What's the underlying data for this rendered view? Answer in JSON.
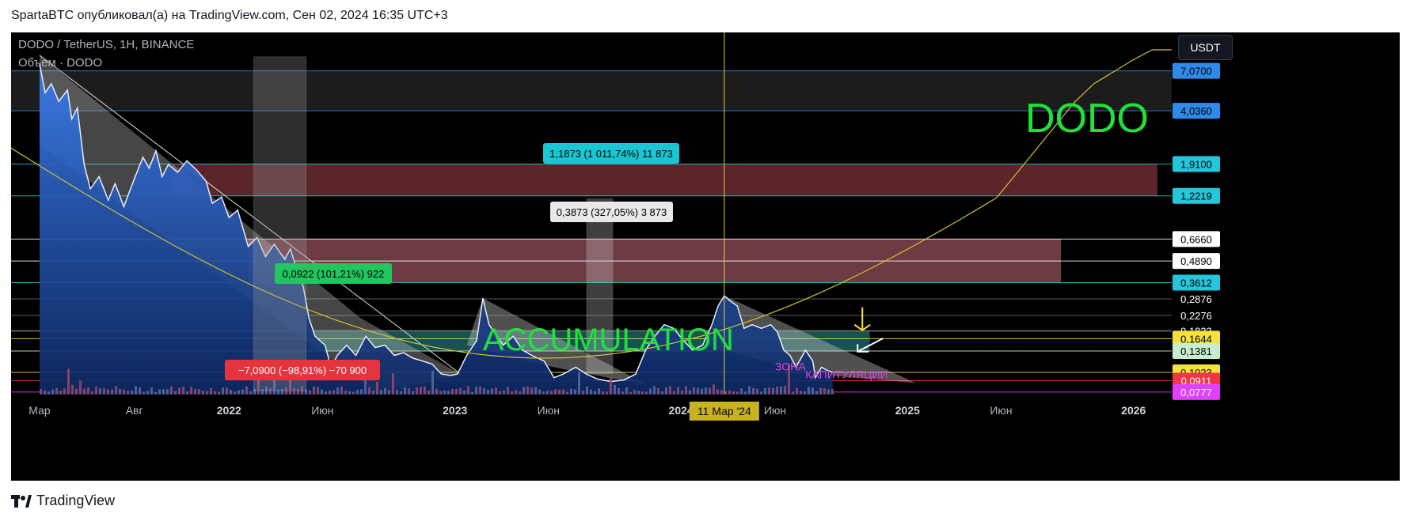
{
  "caption": "SpartaBTC опубликовал(а) на TradingView.com, Сен 02, 2024 16:35 UTC+3",
  "footer": {
    "logo_text": "TradingView"
  },
  "colors": {
    "background": "#000000",
    "area_fill": "#2a6bd6",
    "price_line": "#e8eefc",
    "accent_green": "#22e03a",
    "capitulation_pink": "#e040e0",
    "crosshair_yellow": "#e6cf3a"
  },
  "chart_data": {
    "type": "area",
    "title": "DODO / TetherUS, 1H, BINANCE",
    "subtitle": "Объем · DODO",
    "currency": "USDT",
    "y_scale": "log",
    "ylim": [
      0.075,
      9.5
    ],
    "x_start": "2021-03",
    "x_end": "2026-02",
    "x_ticks": [
      {
        "label": "Мар",
        "date": "2021-03"
      },
      {
        "label": "Авг",
        "date": "2021-08"
      },
      {
        "label": "2022",
        "date": "2022-01"
      },
      {
        "label": "Июн",
        "date": "2022-06"
      },
      {
        "label": "2023",
        "date": "2023-01"
      },
      {
        "label": "Июн",
        "date": "2023-06"
      },
      {
        "label": "2024",
        "date": "2024-01"
      },
      {
        "label": "Июн",
        "date": "2024-06"
      },
      {
        "label": "2025",
        "date": "2025-01"
      },
      {
        "label": "Июн",
        "date": "2025-06"
      },
      {
        "label": "2026",
        "date": "2026-01"
      }
    ],
    "crosshair": {
      "date": "2024-03-11",
      "label": "11 Мар '24"
    },
    "price_levels": [
      {
        "value": 7.07,
        "label": "7,0700",
        "bg": "#2f8ae8",
        "fg": "#000000"
      },
      {
        "value": 4.036,
        "label": "4,0360",
        "bg": "#2f8ae8",
        "fg": "#000000"
      },
      {
        "value": 1.91,
        "label": "1,9100",
        "bg": "#26c6da",
        "fg": "#000000"
      },
      {
        "value": 1.2219,
        "label": "1,2219",
        "bg": "#26c6da",
        "fg": "#000000"
      },
      {
        "value": 0.666,
        "label": "0,6660",
        "bg": "#ffffff",
        "fg": "#000000"
      },
      {
        "value": 0.489,
        "label": "0,4890",
        "bg": "#ffffff",
        "fg": "#000000"
      },
      {
        "value": 0.3612,
        "label": "0,3612",
        "bg": "#26c6da",
        "fg": "#000000"
      },
      {
        "value": 0.2876,
        "label": "0,2876",
        "bg": "#000000",
        "fg": "#ffffff"
      },
      {
        "value": 0.2276,
        "label": "0,2276",
        "bg": "#000000",
        "fg": "#ffffff"
      },
      {
        "value": 0.1833,
        "label": "0,1833",
        "bg": "#000000",
        "fg": "#ffffff"
      },
      {
        "value": 0.1644,
        "label": "0,1644",
        "bg": "#f5e23c",
        "fg": "#000000"
      },
      {
        "value": 0.1381,
        "label": "0,1381",
        "bg": "#c7ecd0",
        "fg": "#000000"
      },
      {
        "value": 0.1023,
        "label": "0,1023",
        "bg": "#f5e23c",
        "fg": "#000000"
      },
      {
        "value": 0.0911,
        "label": "0,0911",
        "bg": "#f23645",
        "fg": "#ffffff"
      },
      {
        "value": 0.0777,
        "label": "0,0777",
        "bg": "#e040fb",
        "fg": "#ffffff"
      }
    ],
    "price_series": [
      [
        "2021-03-01",
        7.8
      ],
      [
        "2021-03-10",
        5.2
      ],
      [
        "2021-03-20",
        5.9
      ],
      [
        "2021-04-01",
        4.6
      ],
      [
        "2021-04-15",
        5.4
      ],
      [
        "2021-04-22",
        3.6
      ],
      [
        "2021-05-01",
        4.2
      ],
      [
        "2021-05-12",
        1.9
      ],
      [
        "2021-05-22",
        1.35
      ],
      [
        "2021-06-05",
        1.6
      ],
      [
        "2021-06-20",
        1.15
      ],
      [
        "2021-07-01",
        1.45
      ],
      [
        "2021-07-15",
        1.05
      ],
      [
        "2021-08-01",
        1.55
      ],
      [
        "2021-08-15",
        2.1
      ],
      [
        "2021-08-25",
        1.8
      ],
      [
        "2021-09-05",
        2.3
      ],
      [
        "2021-09-15",
        1.6
      ],
      [
        "2021-09-25",
        1.9
      ],
      [
        "2021-10-10",
        1.7
      ],
      [
        "2021-10-25",
        2.0
      ],
      [
        "2021-11-10",
        1.75
      ],
      [
        "2021-11-25",
        1.5
      ],
      [
        "2021-12-05",
        1.1
      ],
      [
        "2021-12-20",
        1.2
      ],
      [
        "2022-01-01",
        0.9
      ],
      [
        "2022-01-15",
        1.0
      ],
      [
        "2022-02-01",
        0.6
      ],
      [
        "2022-02-15",
        0.68
      ],
      [
        "2022-03-01",
        0.52
      ],
      [
        "2022-03-15",
        0.62
      ],
      [
        "2022-04-01",
        0.5
      ],
      [
        "2022-04-10",
        0.58
      ],
      [
        "2022-04-20",
        0.44
      ],
      [
        "2022-05-01",
        0.34
      ],
      [
        "2022-05-10",
        0.22
      ],
      [
        "2022-05-20",
        0.17
      ],
      [
        "2022-06-05",
        0.15
      ],
      [
        "2022-06-15",
        0.11
      ],
      [
        "2022-06-25",
        0.13
      ],
      [
        "2022-07-10",
        0.15
      ],
      [
        "2022-07-25",
        0.13
      ],
      [
        "2022-08-10",
        0.17
      ],
      [
        "2022-08-25",
        0.145
      ],
      [
        "2022-09-10",
        0.15
      ],
      [
        "2022-09-25",
        0.13
      ],
      [
        "2022-10-10",
        0.135
      ],
      [
        "2022-10-25",
        0.125
      ],
      [
        "2022-11-10",
        0.12
      ],
      [
        "2022-11-25",
        0.115
      ],
      [
        "2022-12-10",
        0.1
      ],
      [
        "2022-12-25",
        0.098
      ],
      [
        "2023-01-05",
        0.1
      ],
      [
        "2023-01-20",
        0.13
      ],
      [
        "2023-02-05",
        0.16
      ],
      [
        "2023-02-15",
        0.29
      ],
      [
        "2023-02-25",
        0.2
      ],
      [
        "2023-03-10",
        0.17
      ],
      [
        "2023-03-20",
        0.15
      ],
      [
        "2023-04-05",
        0.17
      ],
      [
        "2023-04-20",
        0.14
      ],
      [
        "2023-05-05",
        0.13
      ],
      [
        "2023-05-25",
        0.12
      ],
      [
        "2023-06-10",
        0.095
      ],
      [
        "2023-06-25",
        0.1
      ],
      [
        "2023-07-15",
        0.11
      ],
      [
        "2023-08-01",
        0.1
      ],
      [
        "2023-08-20",
        0.093
      ],
      [
        "2023-09-10",
        0.09
      ],
      [
        "2023-10-01",
        0.092
      ],
      [
        "2023-10-20",
        0.1
      ],
      [
        "2023-11-05",
        0.14
      ],
      [
        "2023-11-20",
        0.17
      ],
      [
        "2023-12-05",
        0.2
      ],
      [
        "2023-12-20",
        0.19
      ],
      [
        "2024-01-05",
        0.16
      ],
      [
        "2024-01-20",
        0.14
      ],
      [
        "2024-02-05",
        0.15
      ],
      [
        "2024-02-20",
        0.2
      ],
      [
        "2024-03-01",
        0.26
      ],
      [
        "2024-03-11",
        0.3
      ],
      [
        "2024-03-20",
        0.28
      ],
      [
        "2024-04-01",
        0.26
      ],
      [
        "2024-04-12",
        0.19
      ],
      [
        "2024-04-25",
        0.2
      ],
      [
        "2024-05-10",
        0.19
      ],
      [
        "2024-05-25",
        0.2
      ],
      [
        "2024-06-05",
        0.18
      ],
      [
        "2024-06-15",
        0.14
      ],
      [
        "2024-06-25",
        0.13
      ],
      [
        "2024-07-05",
        0.11
      ],
      [
        "2024-07-20",
        0.14
      ],
      [
        "2024-08-01",
        0.12
      ],
      [
        "2024-08-05",
        0.095
      ],
      [
        "2024-08-15",
        0.11
      ],
      [
        "2024-08-25",
        0.105
      ],
      [
        "2024-09-02",
        0.1023
      ]
    ],
    "annotations": [
      {
        "text": "ACCUMULATION",
        "color": "#22e03a"
      },
      {
        "text": "DODO",
        "color": "#22e03a"
      },
      {
        "text": "ЗОНА",
        "color": "#e040e0"
      },
      {
        "text": "КАПИТУЛЯЦИИ",
        "color": "#e040e0"
      }
    ],
    "measurements": [
      {
        "label": "−7,0900 (−98,91%) −70 900",
        "bg": "#e5343e",
        "fg": "#ffffff"
      },
      {
        "label": "0,0922 (101,21%) 922",
        "bg": "#22c55e",
        "fg": "#000000"
      },
      {
        "label": "0,3873 (327,05%) 3 873",
        "bg": "#e8e8e8",
        "fg": "#000000"
      },
      {
        "label": "1,1873 (1 011,74%) 11 873",
        "bg": "#19c6d1",
        "fg": "#000000"
      }
    ]
  }
}
